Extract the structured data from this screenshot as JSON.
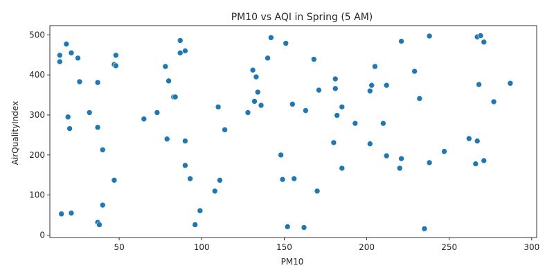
{
  "chart_data": {
    "type": "scatter",
    "title": "PM10 vs AQI in Spring (5 AM)",
    "xlabel": "PM10",
    "ylabel": "AirQualityIndex",
    "xlim": [
      8,
      303
    ],
    "ylim": [
      -6,
      523
    ],
    "xticks": [
      50,
      100,
      150,
      200,
      250,
      300
    ],
    "yticks": [
      0,
      100,
      200,
      300,
      400,
      500
    ],
    "grid": false,
    "marker_color": "#1f77b4",
    "points": [
      {
        "x": 14,
        "y": 449
      },
      {
        "x": 14,
        "y": 433
      },
      {
        "x": 15,
        "y": 53
      },
      {
        "x": 18,
        "y": 477
      },
      {
        "x": 19,
        "y": 295
      },
      {
        "x": 20,
        "y": 266
      },
      {
        "x": 21,
        "y": 455
      },
      {
        "x": 21,
        "y": 55
      },
      {
        "x": 25,
        "y": 442
      },
      {
        "x": 26,
        "y": 383
      },
      {
        "x": 32,
        "y": 306
      },
      {
        "x": 37,
        "y": 381
      },
      {
        "x": 37,
        "y": 269
      },
      {
        "x": 37,
        "y": 32
      },
      {
        "x": 38,
        "y": 26
      },
      {
        "x": 40,
        "y": 213
      },
      {
        "x": 40,
        "y": 75
      },
      {
        "x": 47,
        "y": 426
      },
      {
        "x": 48,
        "y": 423
      },
      {
        "x": 47,
        "y": 137
      },
      {
        "x": 48,
        "y": 449
      },
      {
        "x": 65,
        "y": 290
      },
      {
        "x": 73,
        "y": 306
      },
      {
        "x": 78,
        "y": 421
      },
      {
        "x": 79,
        "y": 240
      },
      {
        "x": 80,
        "y": 385
      },
      {
        "x": 83,
        "y": 345
      },
      {
        "x": 84,
        "y": 345
      },
      {
        "x": 87,
        "y": 486
      },
      {
        "x": 87,
        "y": 455
      },
      {
        "x": 90,
        "y": 460
      },
      {
        "x": 90,
        "y": 235
      },
      {
        "x": 90,
        "y": 174
      },
      {
        "x": 93,
        "y": 141
      },
      {
        "x": 96,
        "y": 26
      },
      {
        "x": 99,
        "y": 61
      },
      {
        "x": 108,
        "y": 110
      },
      {
        "x": 110,
        "y": 320
      },
      {
        "x": 111,
        "y": 137
      },
      {
        "x": 114,
        "y": 263
      },
      {
        "x": 128,
        "y": 306
      },
      {
        "x": 131,
        "y": 412
      },
      {
        "x": 132,
        "y": 334
      },
      {
        "x": 133,
        "y": 395
      },
      {
        "x": 134,
        "y": 357
      },
      {
        "x": 136,
        "y": 324
      },
      {
        "x": 140,
        "y": 442
      },
      {
        "x": 142,
        "y": 493
      },
      {
        "x": 148,
        "y": 200
      },
      {
        "x": 149,
        "y": 139
      },
      {
        "x": 151,
        "y": 479
      },
      {
        "x": 152,
        "y": 21
      },
      {
        "x": 155,
        "y": 327
      },
      {
        "x": 156,
        "y": 141
      },
      {
        "x": 162,
        "y": 19
      },
      {
        "x": 163,
        "y": 311
      },
      {
        "x": 168,
        "y": 439
      },
      {
        "x": 170,
        "y": 110
      },
      {
        "x": 171,
        "y": 362
      },
      {
        "x": 180,
        "y": 231
      },
      {
        "x": 181,
        "y": 390
      },
      {
        "x": 181,
        "y": 366
      },
      {
        "x": 182,
        "y": 299
      },
      {
        "x": 185,
        "y": 320
      },
      {
        "x": 185,
        "y": 167
      },
      {
        "x": 193,
        "y": 279
      },
      {
        "x": 202,
        "y": 228
      },
      {
        "x": 202,
        "y": 360
      },
      {
        "x": 203,
        "y": 374
      },
      {
        "x": 205,
        "y": 421
      },
      {
        "x": 210,
        "y": 279
      },
      {
        "x": 212,
        "y": 198
      },
      {
        "x": 212,
        "y": 374
      },
      {
        "x": 220,
        "y": 167
      },
      {
        "x": 221,
        "y": 191
      },
      {
        "x": 221,
        "y": 484
      },
      {
        "x": 229,
        "y": 409
      },
      {
        "x": 232,
        "y": 341
      },
      {
        "x": 235,
        "y": 16
      },
      {
        "x": 238,
        "y": 181
      },
      {
        "x": 238,
        "y": 497
      },
      {
        "x": 247,
        "y": 209
      },
      {
        "x": 262,
        "y": 241
      },
      {
        "x": 266,
        "y": 178
      },
      {
        "x": 267,
        "y": 235
      },
      {
        "x": 267,
        "y": 495
      },
      {
        "x": 268,
        "y": 376
      },
      {
        "x": 269,
        "y": 498
      },
      {
        "x": 271,
        "y": 482
      },
      {
        "x": 271,
        "y": 186
      },
      {
        "x": 277,
        "y": 333
      },
      {
        "x": 287,
        "y": 379
      }
    ]
  }
}
